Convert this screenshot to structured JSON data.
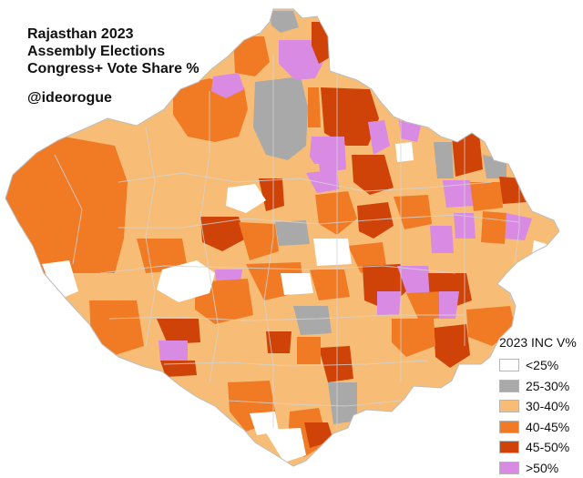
{
  "title": {
    "line1": "Rajasthan 2023",
    "line2": "Assembly Elections",
    "line3": "Congress+ Vote Share %"
  },
  "handle": "@ideorogue",
  "legend": {
    "title": "2023 INC V%",
    "items": [
      {
        "label": "<25%",
        "color": "#ffffff"
      },
      {
        "label": "25-30%",
        "color": "#a9a9a9"
      },
      {
        "label": "30-40%",
        "color": "#f7bd76"
      },
      {
        "label": "40-45%",
        "color": "#f17b25"
      },
      {
        "label": "45-50%",
        "color": "#cf4308"
      },
      {
        "label": ">50%",
        "color": "#d98ae3"
      }
    ]
  },
  "map": {
    "region": "Rajasthan",
    "base_color": "#f7bd76",
    "border_color": "#cfcfcf"
  }
}
